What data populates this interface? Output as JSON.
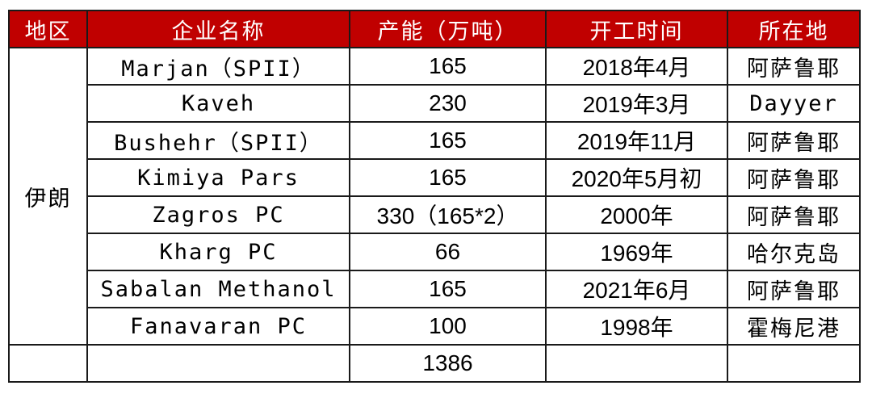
{
  "headers": [
    "地区",
    "企业名称",
    "产能（万吨）",
    "开工时间",
    "所在地"
  ],
  "region": "伊朗",
  "rows": [
    {
      "name": "Marjan（SPII）",
      "capacity": "165",
      "start": "2018年4月",
      "location": "阿萨鲁耶"
    },
    {
      "name": "Kaveh",
      "capacity": "230",
      "start": "2019年3月",
      "location": "Dayyer"
    },
    {
      "name": "Bushehr（SPII）",
      "capacity": "165",
      "start": "2019年11月",
      "location": "阿萨鲁耶"
    },
    {
      "name": "Kimiya Pars",
      "capacity": "165",
      "start": "2020年5月初",
      "location": "阿萨鲁耶"
    },
    {
      "name": "Zagros PC",
      "capacity": "330（165*2）",
      "start": "2000年",
      "location": "阿萨鲁耶"
    },
    {
      "name": "Kharg PC",
      "capacity": "66",
      "start": "1969年",
      "location": "哈尔克岛"
    },
    {
      "name": "Sabalan Methanol",
      "capacity": "165",
      "start": "2021年6月",
      "location": "阿萨鲁耶"
    },
    {
      "name": "Fanavaran PC",
      "capacity": "100",
      "start": "1998年",
      "location": "霍梅尼港"
    }
  ],
  "total": {
    "name": "",
    "capacity": "1386",
    "start": "",
    "location": ""
  }
}
